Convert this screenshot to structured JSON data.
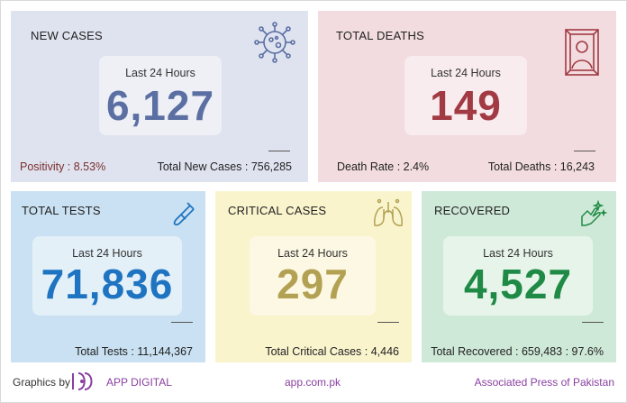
{
  "cards": {
    "new_cases": {
      "title": "NEW CASES",
      "period": "Last 24 Hours",
      "value": "6,127",
      "left_stat": "Positivity : 8.53%",
      "right_stat": "Total New Cases : 756,285",
      "icon": "virus-icon",
      "color": "#5b6fa3"
    },
    "total_deaths": {
      "title": "TOTAL DEATHS",
      "period": "Last 24 Hours",
      "value": "149",
      "left_stat": "Death Rate : 2.4%",
      "right_stat": "Total Deaths : 16,243",
      "icon": "portrait-frame-icon",
      "color": "#a23a43"
    },
    "total_tests": {
      "title": "TOTAL TESTS",
      "period": "Last 24 Hours",
      "value": "71,836",
      "stat": "Total Tests : 11,144,367",
      "icon": "test-tube-icon",
      "color": "#1f74c1"
    },
    "critical_cases": {
      "title": "CRITICAL CASES",
      "period": "Last 24 Hours",
      "value": "297",
      "stat": "Total Critical Cases : 4,446",
      "icon": "lungs-icon",
      "color": "#b3a153"
    },
    "recovered": {
      "title": "RECOVERED",
      "period": "Last 24 Hours",
      "value": "4,527",
      "stat": "Total Recovered : 659,483 : 97.6%",
      "icon": "clean-hand-icon",
      "color": "#1f8a45"
    }
  },
  "footer": {
    "graphics_by": "Graphics by",
    "brand": "APP DIGITAL",
    "website": "app.com.pk",
    "agency": "Associated Press of Pakistan"
  }
}
